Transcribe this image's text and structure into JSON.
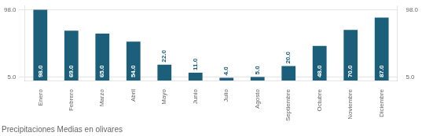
{
  "chart_data": {
    "type": "bar",
    "title": "Precipitaciones Medias en olivares",
    "categories": [
      "Enero",
      "Febrero",
      "Marzo",
      "Abril",
      "Mayo",
      "Junio",
      "Julio",
      "Agosto",
      "Septiembre",
      "Octubre",
      "Noviembre",
      "Diciembre"
    ],
    "values": [
      98.0,
      69.0,
      65.0,
      54.0,
      22.0,
      11.0,
      4.0,
      5.0,
      20.0,
      48.0,
      70.0,
      87.0
    ],
    "value_labels": [
      "98.0",
      "69.0",
      "65.0",
      "54.0",
      "22.0",
      "11.0",
      "4.0",
      "5.0",
      "20.0",
      "48.0",
      "70.0",
      "87.0"
    ],
    "data_labels": true,
    "color": "#1b5f7a",
    "ylim": [
      0,
      103
    ],
    "yticks": [
      {
        "value": 5,
        "label": "5.0"
      },
      {
        "value": 98,
        "label": "98.0"
      }
    ],
    "y2lim": [
      0,
      103
    ],
    "y2ticks": [
      {
        "value": 5,
        "label": "5.0"
      },
      {
        "value": 98,
        "label": "98.0"
      }
    ],
    "grid": true
  }
}
